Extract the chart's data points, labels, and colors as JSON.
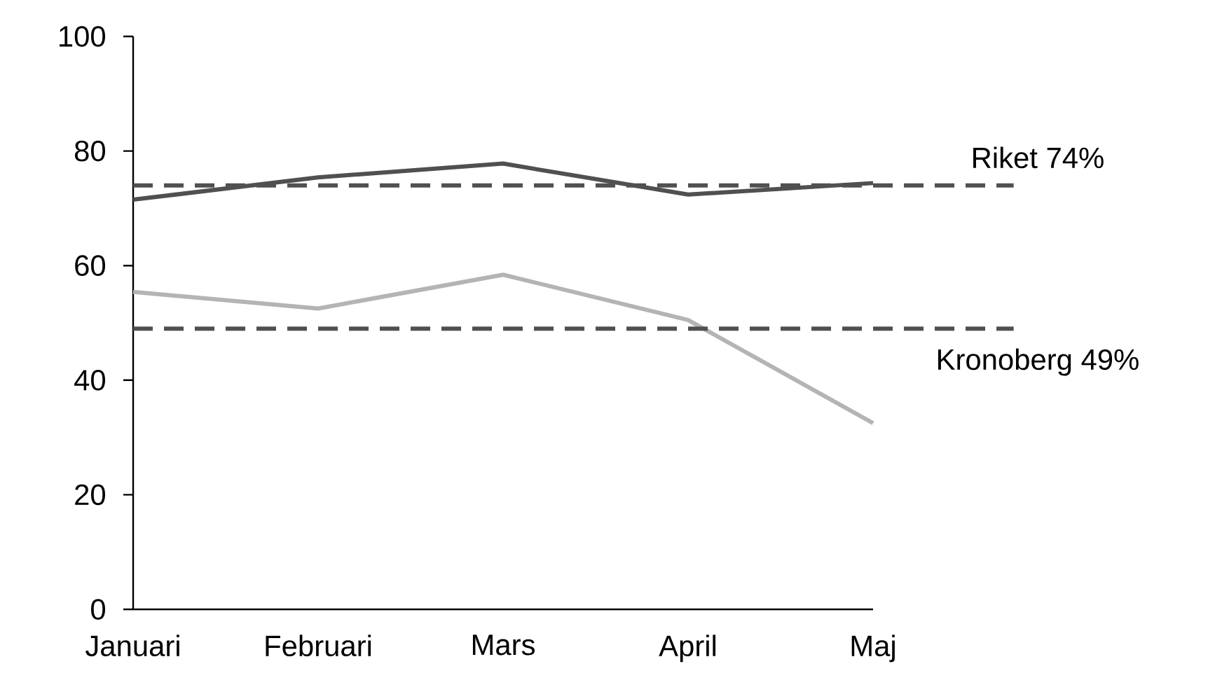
{
  "chart_data": {
    "type": "line",
    "categories": [
      "Januari",
      "Februari",
      "Mars",
      "April",
      "Maj"
    ],
    "series": [
      {
        "color": "#505050",
        "values": [
          71.5,
          75.4,
          77.8,
          72.4,
          74.4
        ]
      },
      {
        "color": "#b4b4b4",
        "values": [
          55.4,
          52.5,
          58.4,
          50.5,
          32.5
        ]
      }
    ],
    "ylim": [
      0,
      100
    ],
    "yticks": [
      0,
      20,
      40,
      60,
      80,
      100
    ],
    "ref_lines": [
      {
        "axis": "y",
        "value": 74,
        "label": "Riket 74%",
        "color": "#505050",
        "line_style": "dashed"
      },
      {
        "axis": "y",
        "value": 49,
        "label": "Kronoberg 49%",
        "color": "#505050",
        "line_style": "dashed"
      }
    ],
    "grid": false,
    "marker": "none",
    "line_style": "solid"
  }
}
